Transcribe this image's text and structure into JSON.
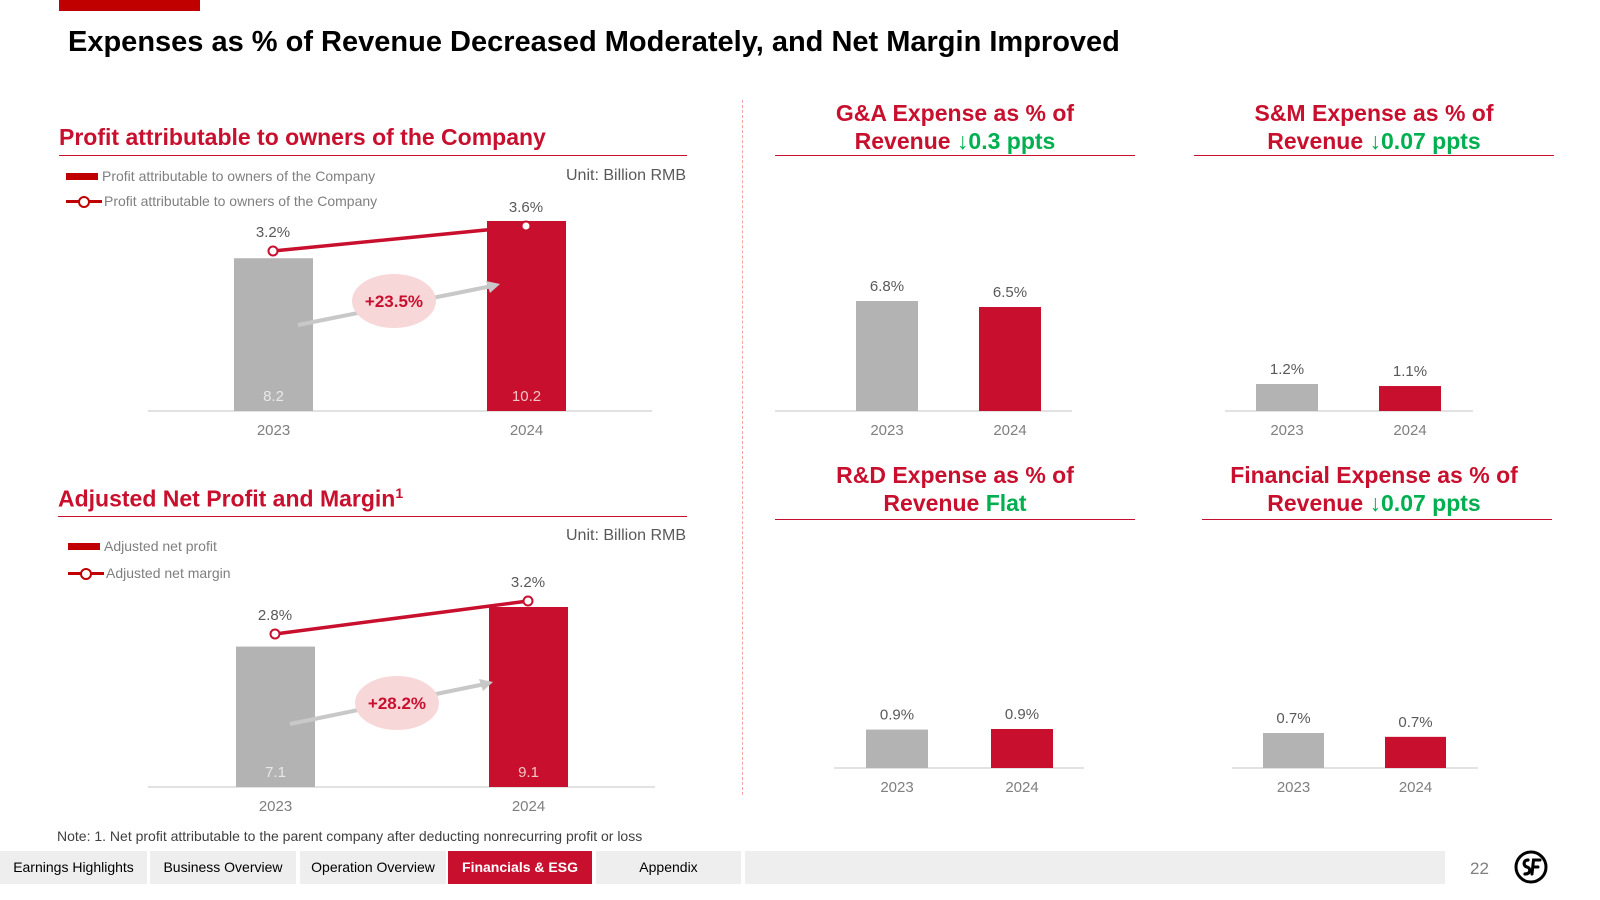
{
  "slide": {
    "title": "Expenses as % of Revenue Decreased Moderately, and Net Margin Improved",
    "note": "Note: 1. Net profit attributable to the parent company after deducting nonrecurring profit or loss",
    "page_number": "22",
    "accent_color": "#c8102e",
    "gray_color": "#b3b3b3",
    "positive_color": "#00b050"
  },
  "left_top": {
    "section_title": "Profit attributable to owners of the Company",
    "unit": "Unit: Billion RMB",
    "legend_bar": "Profit attributable to owners of the Company",
    "legend_line": "Profit attributable to owners of the Company"
  },
  "left_bottom": {
    "section_title": "Adjusted Net Profit and Margin",
    "footnote_mark": "1",
    "unit": "Unit: Billion RMB",
    "legend_bar": "Adjusted net profit",
    "legend_line": "Adjusted net margin"
  },
  "right": {
    "ga": {
      "title_line1": "G&A Expense as % of",
      "title_prefix": "Revenue ",
      "title_change": "↓0.3 ppts"
    },
    "sm": {
      "title_line1": "S&M Expense as % of",
      "title_prefix": "Revenue ",
      "title_change": "↓0.07 ppts"
    },
    "rd": {
      "title_line1": "R&D Expense as % of",
      "title_prefix": "Revenue ",
      "title_change": "Flat"
    },
    "fin": {
      "title_line1": "Financial Expense as % of",
      "title_prefix": "Revenue ",
      "title_change": "↓0.07 ppts"
    }
  },
  "chart_data": [
    {
      "id": "profit",
      "type": "bar+line",
      "title": "Profit attributable to owners of the Company",
      "categories": [
        "2023",
        "2024"
      ],
      "series": [
        {
          "name": "Profit attributable to owners of the Company",
          "kind": "bar",
          "values": [
            8.2,
            10.2
          ],
          "labels": [
            "8.2",
            "10.2"
          ]
        },
        {
          "name": "Profit attributable to owners of the Company",
          "kind": "line",
          "values": [
            3.2,
            3.6
          ],
          "labels": [
            "3.2%",
            "3.6%"
          ]
        }
      ],
      "growth_label": "+23.5%",
      "ylim": [
        0,
        12
      ]
    },
    {
      "id": "adjusted",
      "type": "bar+line",
      "title": "Adjusted Net Profit and Margin",
      "categories": [
        "2023",
        "2024"
      ],
      "series": [
        {
          "name": "Adjusted net profit",
          "kind": "bar",
          "values": [
            7.1,
            9.1
          ],
          "labels": [
            "7.1",
            "9.1"
          ]
        },
        {
          "name": "Adjusted net margin",
          "kind": "line",
          "values": [
            2.8,
            3.2
          ],
          "labels": [
            "2.8%",
            "3.2%"
          ]
        }
      ],
      "growth_label": "+28.2%",
      "ylim": [
        0,
        10.5
      ]
    },
    {
      "id": "ga",
      "type": "bar",
      "title": "G&A Expense as % of Revenue",
      "categories": [
        "2023",
        "2024"
      ],
      "values": [
        6.8,
        6.5
      ],
      "labels": [
        "6.8%",
        "6.5%"
      ],
      "ylim": [
        0,
        6.8
      ]
    },
    {
      "id": "sm",
      "type": "bar",
      "title": "S&M Expense as % of Revenue",
      "categories": [
        "2023",
        "2024"
      ],
      "values": [
        1.2,
        1.1
      ],
      "labels": [
        "1.2%",
        "1.1%"
      ],
      "ylim": [
        0,
        6.8
      ]
    },
    {
      "id": "rd",
      "type": "bar",
      "title": "R&D Expense as % of Revenue",
      "categories": [
        "2023",
        "2024"
      ],
      "values": [
        0.9,
        0.9
      ],
      "labels": [
        "0.9%",
        "0.9%"
      ],
      "ylim": [
        0,
        6.8
      ]
    },
    {
      "id": "fin",
      "type": "bar",
      "title": "Financial Expense as % of Revenue",
      "categories": [
        "2023",
        "2024"
      ],
      "values": [
        0.7,
        0.7
      ],
      "labels": [
        "0.7%",
        "0.7%"
      ],
      "ylim": [
        0,
        6.8
      ]
    }
  ],
  "nav": {
    "tabs": [
      {
        "label": "Earnings Highlights",
        "active": false
      },
      {
        "label": "Business Overview",
        "active": false
      },
      {
        "label": "Operation Overview",
        "active": false
      },
      {
        "label": "Financials & ESG",
        "active": true
      },
      {
        "label": "Appendix",
        "active": false
      }
    ]
  },
  "logo": {
    "icon": "sf-logo-icon"
  }
}
